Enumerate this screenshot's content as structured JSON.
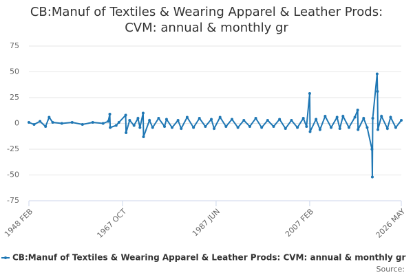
{
  "chart_data": {
    "type": "line",
    "title": "CB:Manuf of Textiles & Wearing Apparel & Leather Prods: CVM: annual & monthly gr",
    "source": "Source:",
    "x": [
      "1948 FEB",
      "1949 MAR",
      "1950 JUN",
      "1951 AUG",
      "1952 MAY",
      "1953 FEB",
      "1955 JAN",
      "1957 MAR",
      "1959 MAY",
      "1961 JUL",
      "1963 SEP",
      "1964 OCT",
      "1965 FEB",
      "1965 MAR",
      "1966 JUN",
      "1967 JAN",
      "1968 JUN",
      "1968 JUL",
      "1969 APR",
      "1970 MAR",
      "1971 JAN",
      "1971 JUN",
      "1972 FEB",
      "1972 MAR",
      "1973 JUN",
      "1974 FEB",
      "1975 MAY",
      "1976 AUG",
      "1977 JAN",
      "1978 MAR",
      "1979 JUN",
      "1980 FEB",
      "1981 MAY",
      "1982 SEP",
      "1983 DEC",
      "1985 MAR",
      "1986 JUN",
      "1987 JAN",
      "1988 APR",
      "1989 JUL",
      "1990 OCT",
      "1992 JAN",
      "1993 APR",
      "1994 JUL",
      "1995 OCT",
      "1997 JAN",
      "1998 APR",
      "1999 JUL",
      "2000 OCT",
      "2002 JAN",
      "2003 APR",
      "2004 JUL",
      "2005 OCT",
      "2006 JUN",
      "2007 FEB",
      "2007 MAR",
      "2008 JUN",
      "2009 APR",
      "2010 MAY",
      "2011 AUG",
      "2012 NOV",
      "2013 JUN",
      "2014 FEB",
      "2015 MAY",
      "2016 AUG",
      "2017 MAR",
      "2017 APR",
      "2018 JUN",
      "2019 MAR",
      "2020 MAR",
      "2020 APR",
      "2020 MAY",
      "2021 APR",
      "2021 MAY",
      "2021 JUN",
      "2022 MAR",
      "2023 JUN",
      "2024 FEB",
      "2025 MAR",
      "2026 MAY"
    ],
    "series": [
      {
        "name": "CB:Manuf of Textiles & Wearing Apparel & Leather Prods: CVM: annual & monthly gr",
        "color": "#1f77b4",
        "values": [
          1,
          -1,
          2,
          -3,
          6,
          1,
          0,
          1,
          -1,
          1,
          0,
          2,
          9,
          -4,
          -2,
          1,
          8,
          -9,
          3,
          -2,
          5,
          -4,
          10,
          -13,
          3,
          -4,
          5,
          -3,
          4,
          -4,
          3,
          -5,
          6,
          -4,
          5,
          -3,
          4,
          -5,
          6,
          -3,
          4,
          -4,
          3,
          -3,
          5,
          -4,
          3,
          -3,
          4,
          -5,
          3,
          -4,
          5,
          -3,
          29,
          -8,
          4,
          -6,
          7,
          -4,
          6,
          -5,
          7,
          -4,
          6,
          13,
          -6,
          5,
          -4,
          -25,
          -52,
          5,
          48,
          31,
          -6,
          7,
          -5,
          6,
          -4,
          3
        ]
      }
    ],
    "xticks": [
      "1948 FEB",
      "1967 OCT",
      "1987 JUN",
      "2007 FEB",
      "2026 MAY"
    ],
    "ylim": [
      -75,
      75
    ],
    "yticks": [
      -75,
      -50,
      -25,
      0,
      25,
      50,
      75
    ],
    "grid": true
  }
}
